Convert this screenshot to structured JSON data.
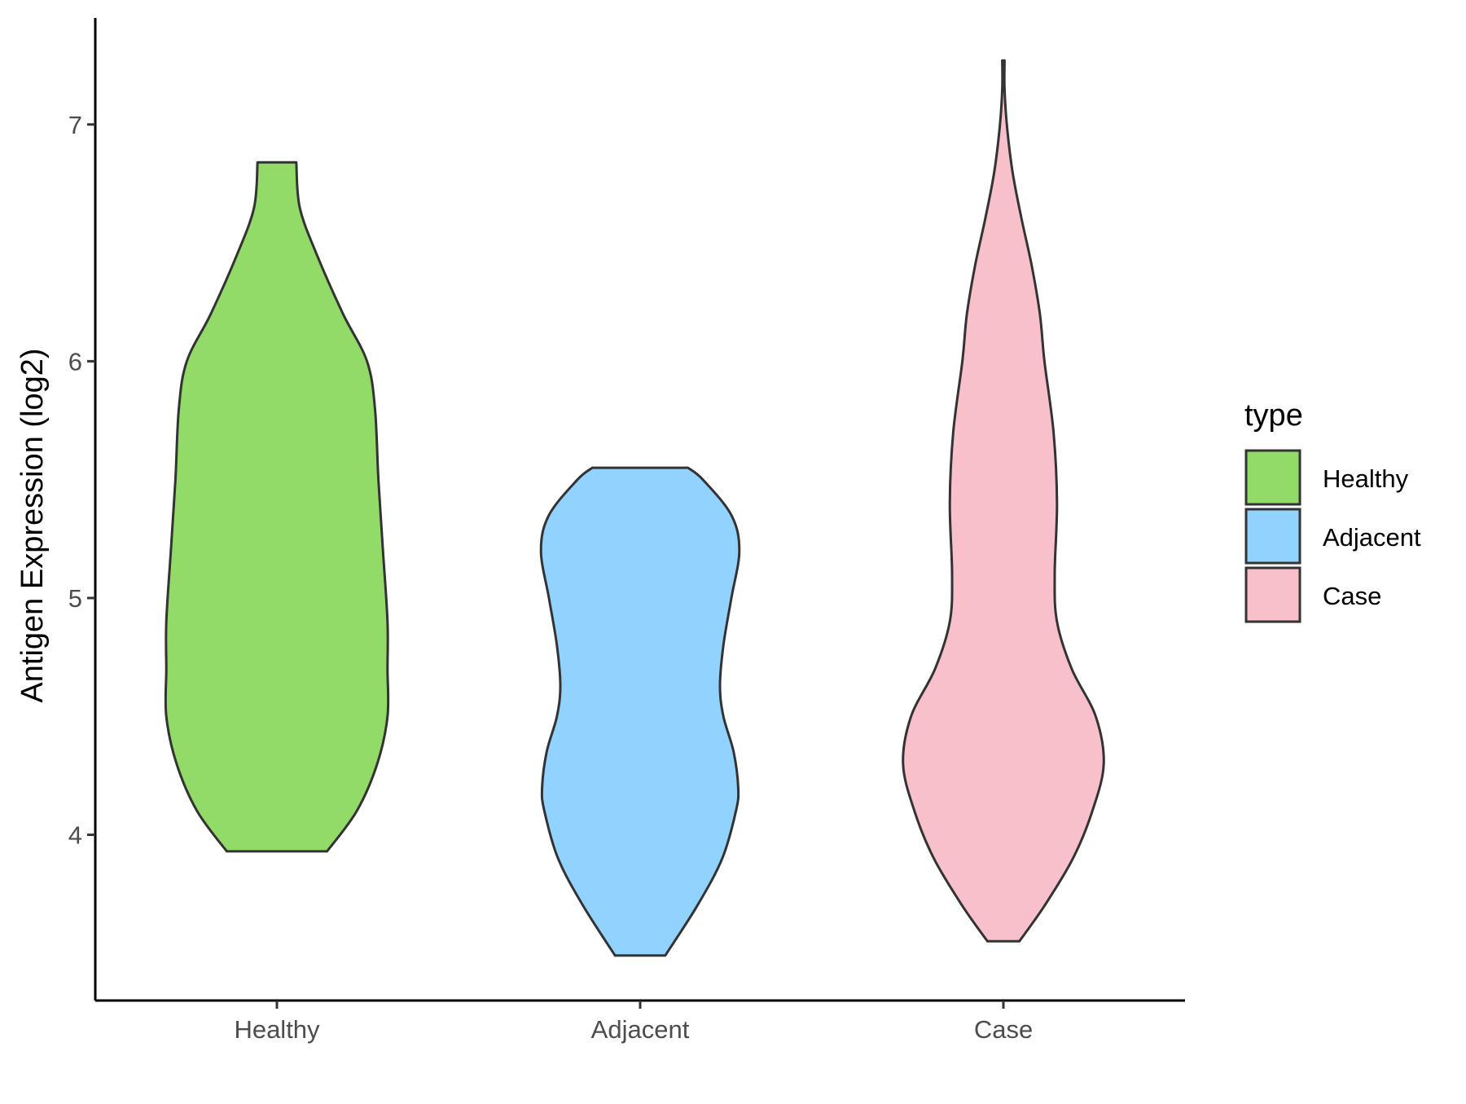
{
  "chart_data": {
    "type": "violin",
    "ylabel": "Antigen Expression (log2)",
    "xlabel": "",
    "categories": [
      "Healthy",
      "Adjacent",
      "Case"
    ],
    "yticks": [
      4,
      5,
      6,
      7
    ],
    "ylim": [
      3.3,
      7.45
    ],
    "legend": {
      "title": "type",
      "position": "right",
      "items": [
        "Healthy",
        "Adjacent",
        "Case"
      ]
    },
    "series": [
      {
        "name": "Healthy",
        "color": "#93DB69",
        "min": 3.93,
        "max": 6.84,
        "density": [
          [
            3.93,
            0.44
          ],
          [
            4.1,
            0.7
          ],
          [
            4.3,
            0.88
          ],
          [
            4.5,
            0.97
          ],
          [
            4.7,
            0.97
          ],
          [
            4.9,
            0.97
          ],
          [
            5.2,
            0.93
          ],
          [
            5.5,
            0.89
          ],
          [
            5.8,
            0.86
          ],
          [
            6.0,
            0.79
          ],
          [
            6.2,
            0.58
          ],
          [
            6.45,
            0.35
          ],
          [
            6.65,
            0.2
          ],
          [
            6.84,
            0.17
          ]
        ]
      },
      {
        "name": "Adjacent",
        "color": "#92D2FE",
        "min": 3.49,
        "max": 5.55,
        "density": [
          [
            3.49,
            0.22
          ],
          [
            3.7,
            0.5
          ],
          [
            3.9,
            0.72
          ],
          [
            4.1,
            0.84
          ],
          [
            4.2,
            0.86
          ],
          [
            4.35,
            0.82
          ],
          [
            4.5,
            0.73
          ],
          [
            4.63,
            0.7
          ],
          [
            4.8,
            0.73
          ],
          [
            5.0,
            0.8
          ],
          [
            5.2,
            0.87
          ],
          [
            5.35,
            0.8
          ],
          [
            5.5,
            0.55
          ],
          [
            5.55,
            0.42
          ]
        ]
      },
      {
        "name": "Case",
        "color": "#F7C0CB",
        "min": 3.55,
        "max": 7.27,
        "density": [
          [
            3.55,
            0.14
          ],
          [
            3.7,
            0.36
          ],
          [
            3.9,
            0.61
          ],
          [
            4.1,
            0.78
          ],
          [
            4.3,
            0.88
          ],
          [
            4.5,
            0.81
          ],
          [
            4.7,
            0.6
          ],
          [
            4.9,
            0.47
          ],
          [
            5.1,
            0.45
          ],
          [
            5.4,
            0.47
          ],
          [
            5.7,
            0.44
          ],
          [
            6.0,
            0.36
          ],
          [
            6.2,
            0.32
          ],
          [
            6.4,
            0.25
          ],
          [
            6.6,
            0.16
          ],
          [
            6.8,
            0.08
          ],
          [
            7.0,
            0.03
          ],
          [
            7.15,
            0.01
          ],
          [
            7.27,
            0.01
          ]
        ]
      }
    ]
  }
}
